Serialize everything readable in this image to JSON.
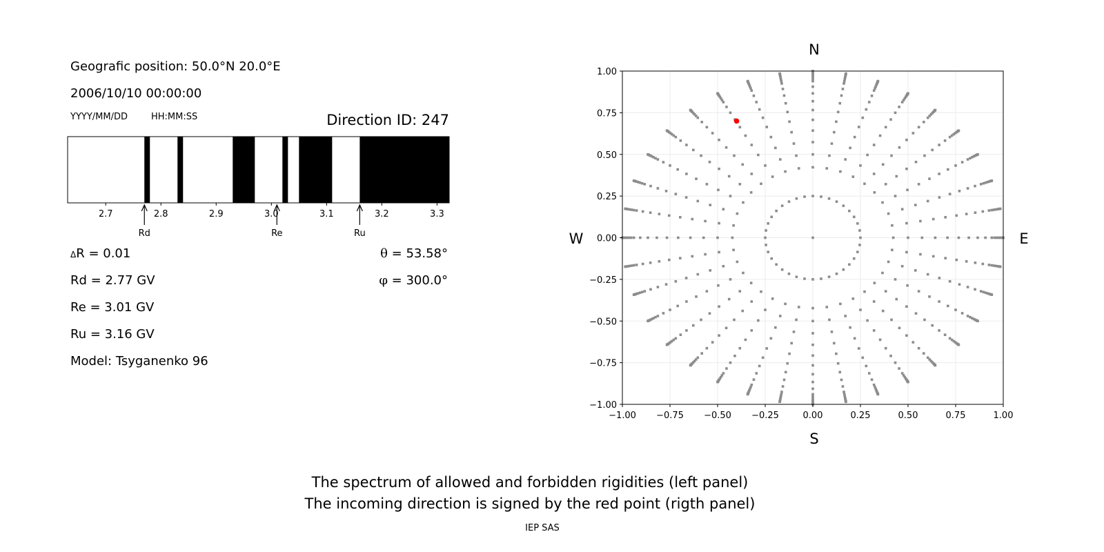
{
  "info": {
    "position": "Geografic position: 50.0°N 20.0°E",
    "datetime": "2006/10/10 00:00:00",
    "date_format": "YYYY/MM/DD",
    "time_format": "HH:MM:SS",
    "direction_id": "Direction ID: 247",
    "delta_r_symbol": "Δ",
    "delta_r": "R = 0.01",
    "rd": "Rd = 2.77 GV",
    "re": "Re = 3.01 GV",
    "ru": "Ru = 3.16 GV",
    "model": "Model: Tsyganenko 96",
    "theta_symbol": "θ",
    "theta": " = 53.58°",
    "phi_symbol": "φ",
    "phi": " = 300.0°"
  },
  "captions": {
    "line1": "The spectrum of allowed and forbidden rigidities (left panel)",
    "line2": "The incoming direction is signed by the red point (rigth panel)",
    "credit": "IEP SAS"
  },
  "chart_data": [
    {
      "type": "bar",
      "panel": "rigidity spectrum",
      "xlim": [
        2.631,
        3.322
      ],
      "xticks": [
        "2.7",
        "2.8",
        "2.9",
        "3.0",
        "3.1",
        "3.2",
        "3.3"
      ],
      "black_bands": [
        [
          2.77,
          2.78
        ],
        [
          2.83,
          2.84
        ],
        [
          2.93,
          2.97
        ],
        [
          3.02,
          3.03
        ],
        [
          3.05,
          3.11
        ],
        [
          3.16,
          3.322
        ]
      ],
      "markers": [
        {
          "label": "Rd",
          "value": 2.77
        },
        {
          "label": "Re",
          "value": 3.01
        },
        {
          "label": "Ru",
          "value": 3.16
        }
      ],
      "colors": {
        "band": "#000000",
        "background": "#ffffff"
      }
    },
    {
      "type": "scatter",
      "panel": "incoming directions",
      "xlim": [
        -1,
        1
      ],
      "ylim": [
        -1,
        1
      ],
      "xticks": [
        "−1.00",
        "−0.75",
        "−0.50",
        "−0.25",
        "0.00",
        "0.25",
        "0.50",
        "0.75",
        "1.00"
      ],
      "yticks": [
        "−1.00",
        "−0.75",
        "−0.50",
        "−0.25",
        "0.00",
        "0.25",
        "0.50",
        "0.75",
        "1.00"
      ],
      "grid": true,
      "compass": {
        "north": "N",
        "south": "S",
        "west": "W",
        "east": "E"
      },
      "direction_grid": {
        "center": [
          0,
          0
        ],
        "inner_ring_radius": 0.25,
        "inner_ring_count": 36,
        "ray_count": 36,
        "ray_zenith_deg": [
          25,
          30,
          35,
          40,
          45,
          50,
          55,
          60,
          65,
          70,
          72.5,
          75,
          77.5,
          80,
          82.5,
          85,
          87.5,
          90
        ]
      },
      "selected_point": {
        "x": -0.4,
        "y": 0.7
      },
      "colors": {
        "grid_points": "#8c8c8c",
        "selected": "#ff0000",
        "gridlines": "#ebebeb"
      }
    }
  ]
}
